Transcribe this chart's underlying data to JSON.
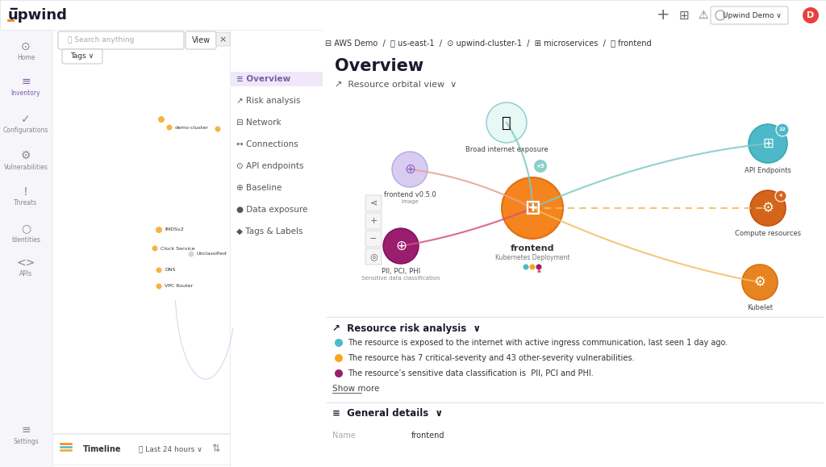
{
  "bg_color": "#ffffff",
  "sidebar_bg": "#f8f8fc",
  "left_panel_bg": "#ffffff",
  "main_bg": "#ffffff",
  "title": "Upwind",
  "nav_items": [
    "Home",
    "Inventory",
    "Configurations",
    "Vulnerabilities",
    "Threats",
    "Identities",
    "APIs",
    "Settings"
  ],
  "active_nav": "Inventory",
  "breadcrumb": "AWS Demo / us-east-1 / upwind-cluster-1 / microservices / frontend",
  "left_menu_items": [
    "Overview",
    "Risk analysis",
    "Network",
    "Connections",
    "API endpoints",
    "Baseline",
    "Data exposure",
    "Tags & Labels"
  ],
  "active_menu": "Overview",
  "overview_title": "Overview",
  "orbital_view_label": "Resource orbital view",
  "center_node": {
    "label": "frontend",
    "sublabel": "Kubernetes Deployment",
    "color": "#F5841F"
  },
  "left_nodes": [
    {
      "label": "frontend v0.5.0",
      "sublabel": "Image",
      "color": "#c5b8e8"
    },
    {
      "label": "PII, PCI, PHI",
      "sublabel": "Sensitive data classification",
      "color": "#9B1D6E"
    }
  ],
  "top_node": {
    "label": "Broad internet exposure",
    "color": "#5BC0DE"
  },
  "right_nodes": [
    {
      "label": "API Endpoints",
      "color": "#4DB8C8"
    },
    {
      "label": "Compute resources",
      "color": "#D4651A"
    },
    {
      "label": "Kubelet",
      "color": "#E8841F"
    }
  ],
  "risk_title": "Resource risk analysis",
  "risk_items": [
    {
      "color": "#4DB8C8",
      "text": "The resource is exposed to the internet with active ingress communication, last seen 1 day ago."
    },
    {
      "color": "#F5A623",
      "text": "The resource has 7 critical-severity and 43 other-severity vulnerabilities."
    },
    {
      "color": "#9B1D6E",
      "text": "The resource’s sensitive data classification is  PII, PCI and PHI."
    }
  ],
  "show_more": "Show more",
  "general_details_title": "General details",
  "name_label": "Name",
  "name_value": "frontend",
  "connection_colors": {
    "globe_to_center": "#7ECAC3",
    "image_to_center": "#E8A090",
    "pii_to_center": "#D45080",
    "center_to_api": "#7ECAC3",
    "center_to_compute": "#F0C060",
    "center_to_kubelet": "#F0C060"
  }
}
